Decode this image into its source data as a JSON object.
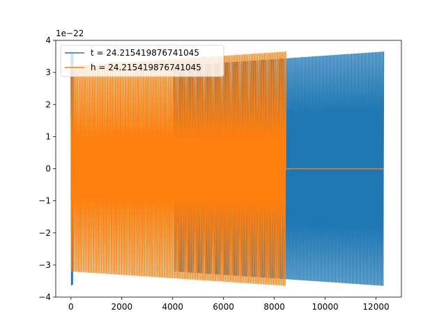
{
  "chart_data": {
    "type": "line",
    "title": "",
    "xlabel": "",
    "ylabel": "",
    "y_scale_label": "1e−22",
    "xlim": [
      -600,
      13000
    ],
    "ylim": [
      -4,
      4
    ],
    "x_ticks": [
      0,
      2000,
      4000,
      6000,
      8000,
      10000,
      12000
    ],
    "x_tick_labels": [
      "0",
      "2000",
      "4000",
      "6000",
      "8000",
      "10000",
      "12000"
    ],
    "y_ticks": [
      -4,
      -3,
      -2,
      -1,
      0,
      1,
      2,
      3,
      4
    ],
    "y_tick_labels": [
      "−4",
      "−3",
      "−2",
      "−1",
      "0",
      "1",
      "2",
      "3",
      "4"
    ],
    "grid": false,
    "legend_position": "top-left",
    "series": [
      {
        "name": "t = 24.215419876741045",
        "color": "#1f77b4",
        "segments": [
          {
            "x_start": 0,
            "x_end": 80,
            "amp_start": 3.65,
            "amp_end": 3.6,
            "cycles": 2
          },
          {
            "x_start": 80,
            "x_end": 4050,
            "amp_start": 0,
            "amp_end": 0,
            "cycles": 0
          },
          {
            "x_start": 4050,
            "x_end": 12300,
            "amp_start": 3.2,
            "amp_end": 3.65,
            "cycles": 150
          }
        ]
      },
      {
        "name": "h = 24.215419876741045",
        "color": "#ff7f0e",
        "segments": [
          {
            "x_start": 0,
            "x_end": 8450,
            "amp_start": 3.2,
            "amp_end": 3.65,
            "cycles": 130
          },
          {
            "x_start": 8450,
            "x_end": 12300,
            "amp_start": 0,
            "amp_end": 0,
            "cycles": 0
          }
        ]
      }
    ]
  }
}
